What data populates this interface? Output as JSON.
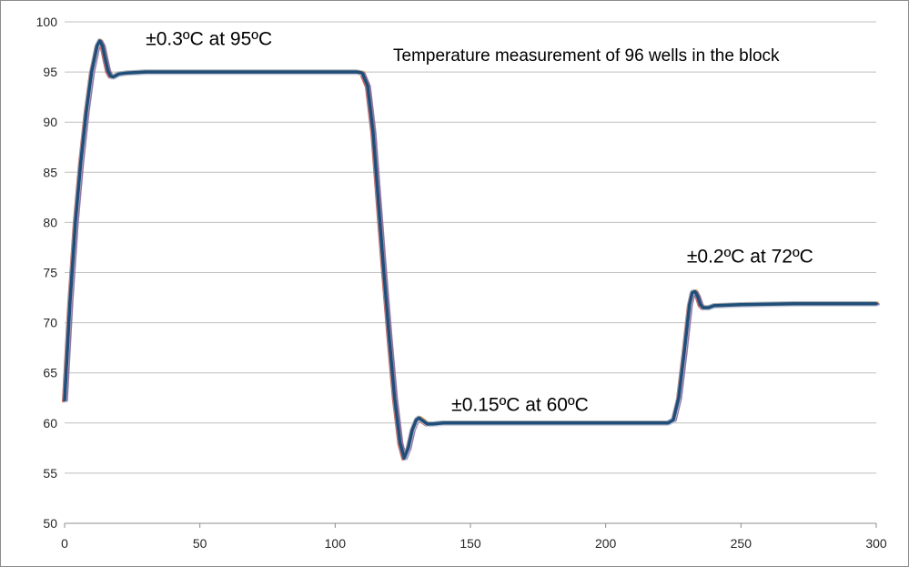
{
  "chart_data": {
    "type": "line",
    "title": "Temperature measurement of 96 wells in the block",
    "xlabel": "",
    "ylabel": "",
    "xlim": [
      0,
      300
    ],
    "ylim": [
      50,
      100
    ],
    "x_ticks": [
      0,
      50,
      100,
      150,
      200,
      250,
      300
    ],
    "y_ticks": [
      50,
      55,
      60,
      65,
      70,
      75,
      80,
      85,
      90,
      95,
      100
    ],
    "grid": "horizontal",
    "legend": "none",
    "annotations": [
      {
        "text": "±0.3ºC at 95ºC",
        "x": 30,
        "y": 97.7
      },
      {
        "text": "±0.15ºC at 60ºC",
        "x": 143,
        "y": 61.2
      },
      {
        "text": "±0.2ºC at 72ºC",
        "x": 230,
        "y": 76.0
      }
    ],
    "colors": {
      "main": "#1f4e79",
      "bands": [
        "#c0504d",
        "#e8a33d",
        "#8064a2",
        "#9aa8b8",
        "#c9d3df"
      ],
      "grid": "#bfbfbf",
      "axis": "#8c8c8c"
    },
    "series": [
      {
        "values": [
          [
            0,
            62.3
          ],
          [
            2,
            72
          ],
          [
            4,
            80
          ],
          [
            6,
            86
          ],
          [
            8,
            91
          ],
          [
            10,
            95
          ],
          [
            12,
            97.6
          ],
          [
            13,
            98.1
          ],
          [
            14,
            97.6
          ],
          [
            15,
            96.3
          ],
          [
            16,
            95.1
          ],
          [
            17,
            94.6
          ],
          [
            18,
            94.5
          ],
          [
            20,
            94.8
          ],
          [
            23,
            94.9
          ],
          [
            30,
            95
          ],
          [
            60,
            95
          ],
          [
            100,
            95
          ],
          [
            108,
            95
          ],
          [
            110,
            94.9
          ],
          [
            112,
            93.6
          ],
          [
            114,
            89
          ],
          [
            116,
            82
          ],
          [
            118,
            75
          ],
          [
            120,
            68.5
          ],
          [
            122,
            62.5
          ],
          [
            124,
            58
          ],
          [
            125.5,
            56.5
          ],
          [
            127,
            57.5
          ],
          [
            128.5,
            59.3
          ],
          [
            130,
            60.3
          ],
          [
            131,
            60.5
          ],
          [
            132,
            60.3
          ],
          [
            134,
            59.9
          ],
          [
            136,
            59.9
          ],
          [
            140,
            60
          ],
          [
            180,
            60
          ],
          [
            223,
            60
          ],
          [
            225,
            60.3
          ],
          [
            227,
            62.5
          ],
          [
            229,
            67
          ],
          [
            231,
            71.8
          ],
          [
            232,
            73
          ],
          [
            233,
            73.1
          ],
          [
            234,
            72.6
          ],
          [
            235,
            71.8
          ],
          [
            236,
            71.5
          ],
          [
            238,
            71.5
          ],
          [
            240,
            71.7
          ],
          [
            250,
            71.8
          ],
          [
            270,
            71.9
          ],
          [
            300,
            71.9
          ]
        ]
      }
    ]
  }
}
